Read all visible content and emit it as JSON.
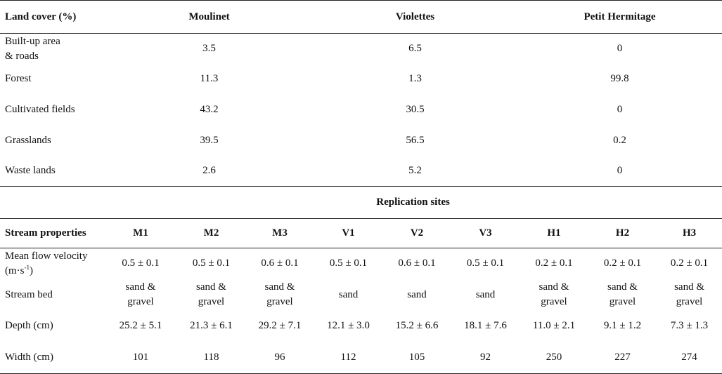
{
  "land_table": {
    "header": {
      "label": "Land cover (%)",
      "columns": [
        "Moulinet",
        "Violettes",
        "Petit Hermitage"
      ]
    },
    "rows": [
      {
        "label_line1": "Built-up area",
        "label_line2": "& roads",
        "values": [
          "3.5",
          "6.5",
          "0"
        ]
      },
      {
        "label_line1": "Forest",
        "label_line2": "",
        "values": [
          "11.3",
          "1.3",
          "99.8"
        ]
      },
      {
        "label_line1": "Cultivated fields",
        "label_line2": "",
        "values": [
          "43.2",
          "30.5",
          "0"
        ]
      },
      {
        "label_line1": "Grasslands",
        "label_line2": "",
        "values": [
          "39.5",
          "56.5",
          "0.2"
        ]
      },
      {
        "label_line1": "Waste lands",
        "label_line2": "",
        "values": [
          "2.6",
          "5.2",
          "0"
        ]
      }
    ]
  },
  "stream_table": {
    "group_title": "Replication sites",
    "header": {
      "label": "Stream properties",
      "columns": [
        "M1",
        "M2",
        "M3",
        "V1",
        "V2",
        "V3",
        "H1",
        "H2",
        "H3"
      ]
    },
    "rows": [
      {
        "label_line1": "Mean flow velocity",
        "label_line2": "(m·s",
        "label_sup": "-1",
        "label_end": ")",
        "values": [
          "0.5 ± 0.1",
          "0.5 ± 0.1",
          "0.6 ± 0.1",
          "0.5 ± 0.1",
          "0.6 ± 0.1",
          "0.5 ± 0.1",
          "0.2 ± 0.1",
          "0.2 ± 0.1",
          "0.2 ± 0.1"
        ]
      },
      {
        "label_line1": "Stream bed",
        "values": [
          {
            "a": "sand &",
            "b": "gravel"
          },
          {
            "a": "sand &",
            "b": "gravel"
          },
          {
            "a": "sand &",
            "b": "gravel"
          },
          {
            "a": "sand",
            "b": ""
          },
          {
            "a": "sand",
            "b": ""
          },
          {
            "a": "sand",
            "b": ""
          },
          {
            "a": "sand &",
            "b": "gravel"
          },
          {
            "a": "sand &",
            "b": "gravel"
          },
          {
            "a": "sand &",
            "b": "gravel"
          }
        ]
      },
      {
        "label_line1": "Depth (cm)",
        "values": [
          "25.2 ± 5.1",
          "21.3 ± 6.1",
          "29.2 ± 7.1",
          "12.1 ± 3.0",
          "15.2 ± 6.6",
          "18.1 ± 7.6",
          "11.0 ± 2.1",
          "9.1 ± 1.2",
          "7.3 ± 1.3"
        ]
      },
      {
        "label_line1": "Width (cm)",
        "values": [
          "101",
          "118",
          "96",
          "112",
          "105",
          "92",
          "250",
          "227",
          "274"
        ]
      }
    ]
  }
}
